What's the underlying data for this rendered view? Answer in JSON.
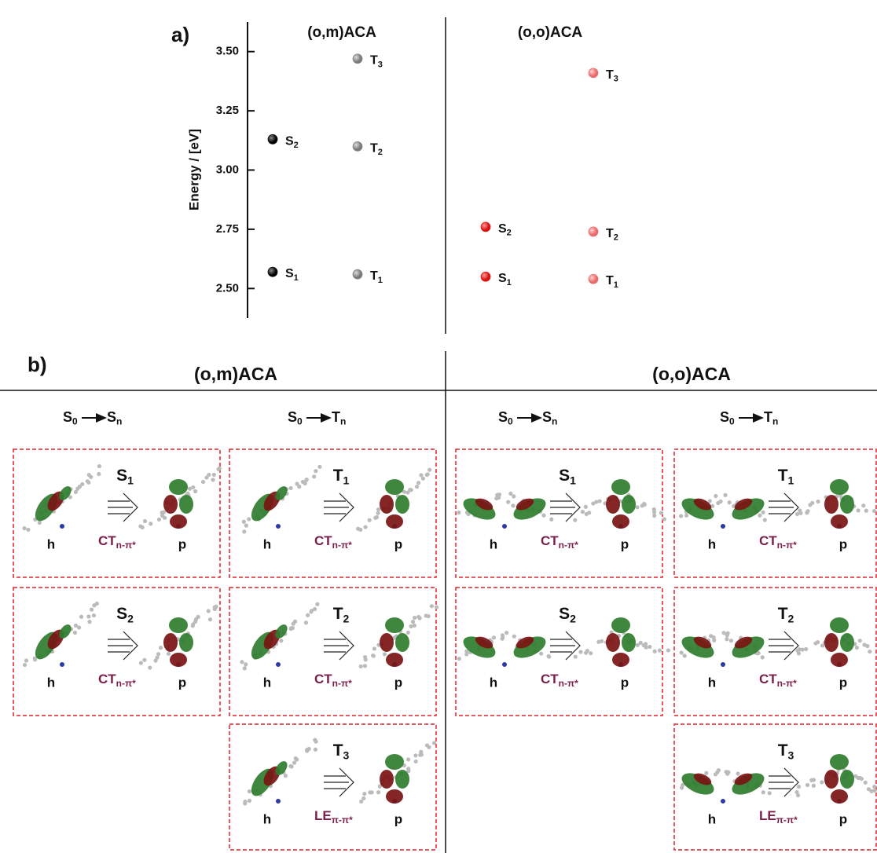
{
  "chart_data": {
    "type": "scatter",
    "panel_label": "a)",
    "y_label": "Energy / [eV]",
    "ylim": [
      2.375,
      3.625
    ],
    "yticks": [
      {
        "value": 2.5,
        "label": "2.50"
      },
      {
        "value": 2.75,
        "label": "2.75"
      },
      {
        "value": 3,
        "label": "3.00"
      },
      {
        "value": 3.25,
        "label": "3.25"
      },
      {
        "value": 3.5,
        "label": "3.50"
      }
    ],
    "groups": [
      {
        "title": "(o,m)ACA",
        "series": [
          {
            "state": "S",
            "color": "#111111",
            "labels": [
              "1",
              "2"
            ],
            "values": [
              2.57,
              3.13
            ]
          },
          {
            "state": "T",
            "color": "#8c8c8c",
            "labels": [
              "1",
              "2",
              "3"
            ],
            "values": [
              2.56,
              3.1,
              3.47
            ]
          }
        ]
      },
      {
        "title": "(o,o)ACA",
        "series": [
          {
            "state": "S",
            "color": "#e01818",
            "labels": [
              "1",
              "2"
            ],
            "values": [
              2.55,
              2.76
            ]
          },
          {
            "state": "T",
            "color": "#ee7272",
            "labels": [
              "1",
              "2",
              "3"
            ],
            "values": [
              2.54,
              2.74,
              3.41
            ]
          }
        ]
      }
    ]
  },
  "panel_b": {
    "label": "b)",
    "panels": [
      {
        "title": "(o,m)ACA",
        "columns": [
          {
            "header": {
              "from": "S",
              "from_sub": "0",
              "to": "S",
              "to_sub": "n"
            },
            "boxes": [
              {
                "state": "S",
                "index": "1",
                "hole": "h",
                "particle": "p",
                "kind": "CT",
                "kind_sub": "n-π*"
              },
              {
                "state": "S",
                "index": "2",
                "hole": "h",
                "particle": "p",
                "kind": "CT",
                "kind_sub": "n-π*"
              }
            ]
          },
          {
            "header": {
              "from": "S",
              "from_sub": "0",
              "to": "T",
              "to_sub": "n"
            },
            "boxes": [
              {
                "state": "T",
                "index": "1",
                "hole": "h",
                "particle": "p",
                "kind": "CT",
                "kind_sub": "n-π*"
              },
              {
                "state": "T",
                "index": "2",
                "hole": "h",
                "particle": "p",
                "kind": "CT",
                "kind_sub": "n-π*"
              },
              {
                "state": "T",
                "index": "3",
                "hole": "h",
                "particle": "p",
                "kind": "LE",
                "kind_sub": "π-π*"
              }
            ]
          }
        ]
      },
      {
        "title": "(o,o)ACA",
        "columns": [
          {
            "header": {
              "from": "S",
              "from_sub": "0",
              "to": "S",
              "to_sub": "n"
            },
            "boxes": [
              {
                "state": "S",
                "index": "1",
                "hole": "h",
                "particle": "p",
                "kind": "CT",
                "kind_sub": "n-π*"
              },
              {
                "state": "S",
                "index": "2",
                "hole": "h",
                "particle": "p",
                "kind": "CT",
                "kind_sub": "n-π*"
              }
            ]
          },
          {
            "header": {
              "from": "S",
              "from_sub": "0",
              "to": "T",
              "to_sub": "n"
            },
            "boxes": [
              {
                "state": "T",
                "index": "1",
                "hole": "h",
                "particle": "p",
                "kind": "CT",
                "kind_sub": "n-π*"
              },
              {
                "state": "T",
                "index": "2",
                "hole": "h",
                "particle": "p",
                "kind": "CT",
                "kind_sub": "n-π*"
              },
              {
                "state": "T",
                "index": "3",
                "hole": "h",
                "particle": "p",
                "kind": "LE",
                "kind_sub": "π-π*"
              }
            ]
          }
        ]
      }
    ]
  }
}
